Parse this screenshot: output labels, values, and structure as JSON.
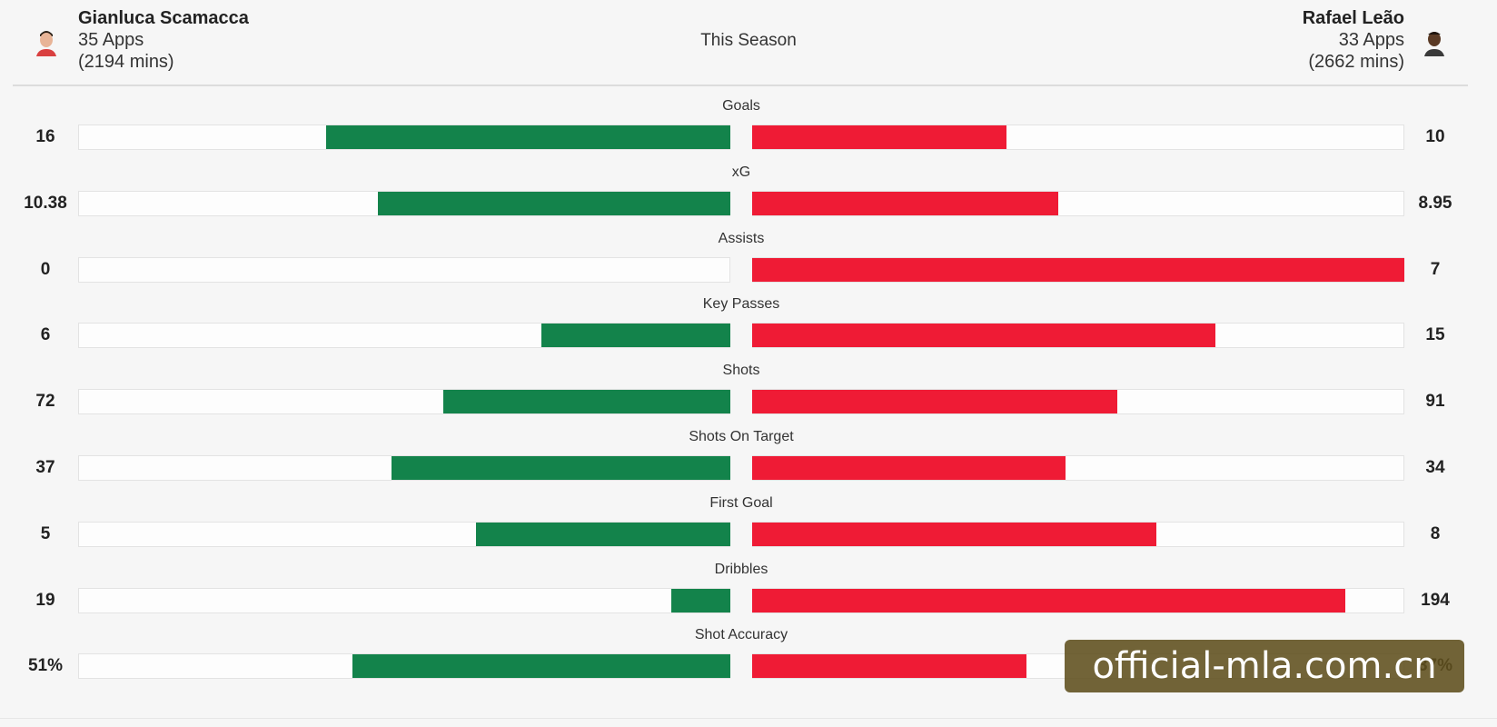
{
  "header": {
    "season": "This Season",
    "left_player": {
      "name": "Gianluca Scamacca",
      "apps": "35 Apps",
      "mins": "(2194 mins)"
    },
    "right_player": {
      "name": "Rafael Leão",
      "apps": "33 Apps",
      "mins": "(2662 mins)"
    }
  },
  "watermark": "official-mla.com.cn",
  "colors": {
    "left_bar": "#13834b",
    "right_bar": "#ef1b35"
  },
  "chart_data": {
    "type": "bar",
    "orientation": "diverging-horizontal",
    "categories": [
      "Goals",
      "xG",
      "Assists",
      "Key Passes",
      "Shots",
      "Shots On Target",
      "First Goal",
      "Dribbles",
      "Shot Accuracy"
    ],
    "series": [
      {
        "name": "Gianluca Scamacca",
        "values": [
          16,
          10.38,
          0,
          6,
          72,
          37,
          5,
          19,
          51
        ],
        "labels": [
          "16",
          "10.38",
          "0",
          "6",
          "72",
          "37",
          "5",
          "19",
          "51%"
        ],
        "fill_fraction": [
          0.62,
          0.54,
          0.0,
          0.29,
          0.44,
          0.52,
          0.39,
          0.09,
          0.58
        ]
      },
      {
        "name": "Rafael Leão",
        "values": [
          10,
          8.95,
          7,
          15,
          91,
          34,
          8,
          194,
          37
        ],
        "labels": [
          "10",
          "8.95",
          "7",
          "15",
          "91",
          "34",
          "8",
          "194",
          "37%"
        ],
        "fill_fraction": [
          0.39,
          0.47,
          1.0,
          0.71,
          0.56,
          0.48,
          0.62,
          0.91,
          0.42
        ]
      }
    ]
  }
}
